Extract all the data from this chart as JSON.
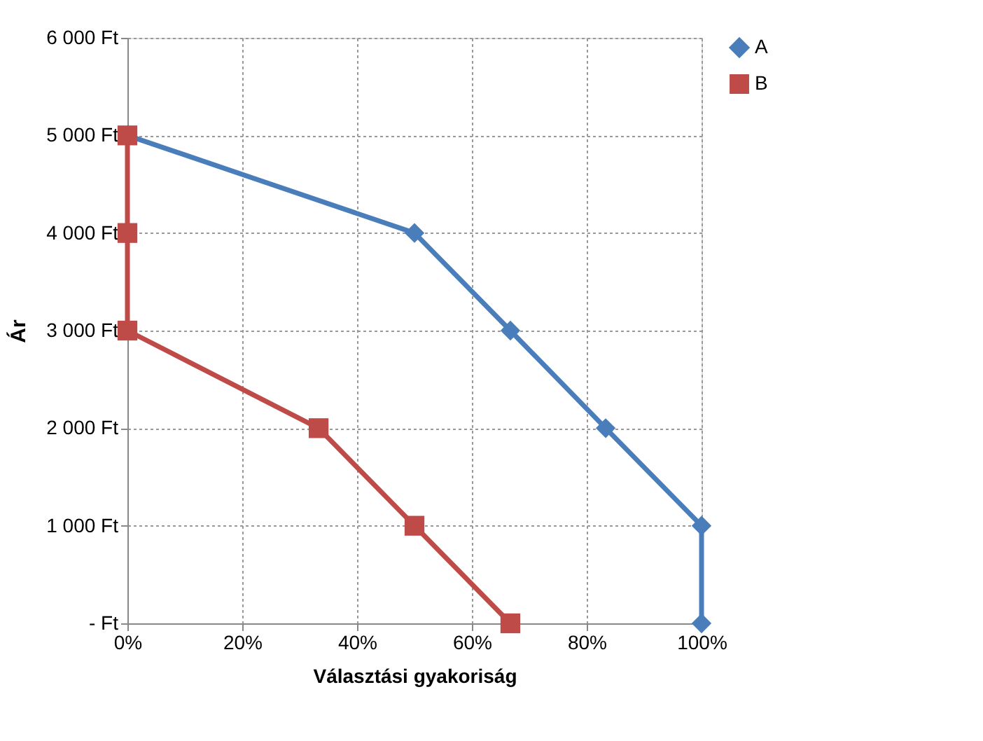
{
  "chart_data": {
    "type": "line",
    "xlabel": "Választási gyakoriság",
    "ylabel": "Ár",
    "xlim": [
      0,
      100
    ],
    "xticks": [
      {
        "value": 0,
        "label": "0%"
      },
      {
        "value": 20,
        "label": "20%"
      },
      {
        "value": 40,
        "label": "40%"
      },
      {
        "value": 60,
        "label": "60%"
      },
      {
        "value": 80,
        "label": "80%"
      },
      {
        "value": 100,
        "label": "100%"
      }
    ],
    "ylim": [
      0,
      6000
    ],
    "yticks": [
      {
        "value": 0,
        "label": "-   Ft"
      },
      {
        "value": 1000,
        "label": "1 000 Ft"
      },
      {
        "value": 2000,
        "label": "2 000 Ft"
      },
      {
        "value": 3000,
        "label": "3 000 Ft"
      },
      {
        "value": 4000,
        "label": "4 000 Ft"
      },
      {
        "value": 5000,
        "label": "5 000 Ft"
      },
      {
        "value": 6000,
        "label": "6 000 Ft"
      }
    ],
    "grid": true,
    "legend": "right",
    "line_style": "solid",
    "series": [
      {
        "name": "A",
        "color": "#4a7ebb",
        "marker": "diamond",
        "x": [
          0,
          50,
          66.7,
          83.3,
          100,
          100
        ],
        "values": [
          5000,
          4000,
          3000,
          2000,
          1000,
          0
        ]
      },
      {
        "name": "B",
        "color": "#be4b48",
        "marker": "square",
        "x": [
          0,
          0,
          0,
          33.3,
          50,
          66.7
        ],
        "values": [
          5000,
          4000,
          3000,
          2000,
          1000,
          0
        ]
      }
    ]
  }
}
